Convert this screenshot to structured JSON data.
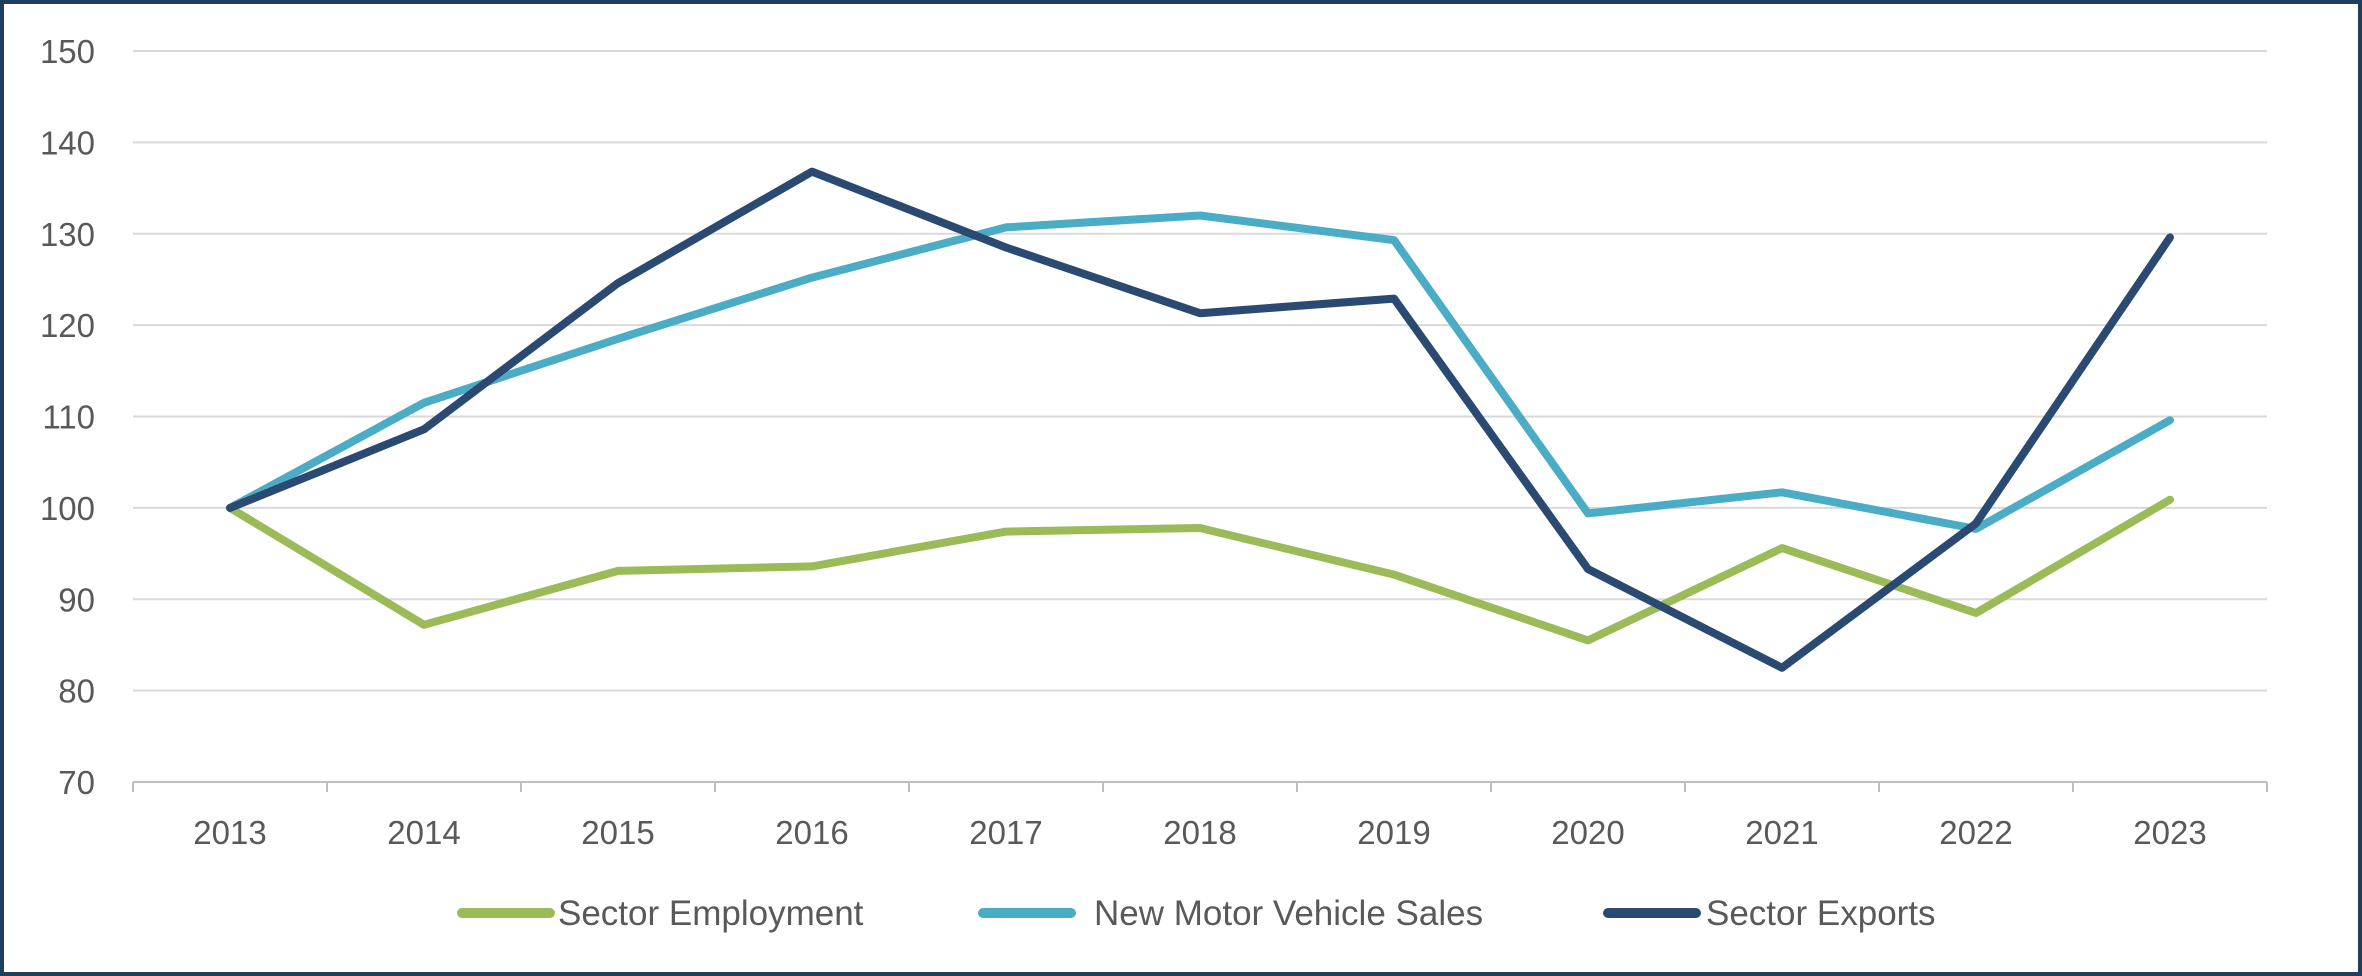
{
  "chart_data": {
    "type": "line",
    "title": "",
    "xlabel": "",
    "ylabel": "",
    "categories": [
      "2013",
      "2014",
      "2015",
      "2016",
      "2017",
      "2018",
      "2019",
      "2020",
      "2021",
      "2022",
      "2023"
    ],
    "ylim": [
      70,
      150
    ],
    "yticks": [
      70,
      80,
      90,
      100,
      110,
      120,
      130,
      140,
      150
    ],
    "grid": true,
    "legend_position": "bottom",
    "series": [
      {
        "name": "Sector Employment",
        "color": "#9bbb59",
        "values": [
          100,
          87.2,
          93.1,
          93.6,
          97.4,
          97.8,
          92.7,
          85.5,
          95.6,
          88.5,
          100.9
        ]
      },
      {
        "name": "New Motor Vehicle Sales",
        "color": "#4bacc6",
        "values": [
          100,
          111.5,
          118.5,
          125.2,
          130.7,
          132.0,
          129.3,
          99.4,
          101.7,
          97.7,
          109.6
        ]
      },
      {
        "name": "Sector Exports",
        "color": "#2a4a72",
        "values": [
          100,
          108.6,
          124.6,
          136.8,
          128.5,
          121.3,
          122.9,
          93.3,
          82.5,
          98.3,
          129.6
        ]
      }
    ]
  }
}
